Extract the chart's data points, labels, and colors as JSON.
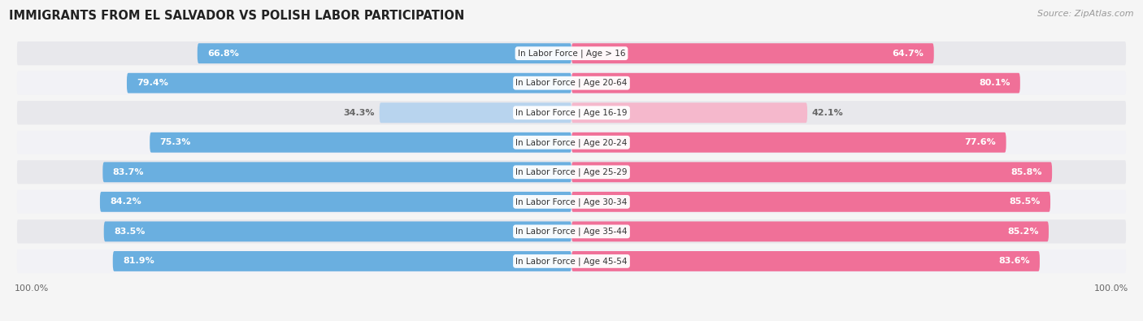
{
  "title": "IMMIGRANTS FROM EL SALVADOR VS POLISH LABOR PARTICIPATION",
  "source": "Source: ZipAtlas.com",
  "categories": [
    "In Labor Force | Age > 16",
    "In Labor Force | Age 20-64",
    "In Labor Force | Age 16-19",
    "In Labor Force | Age 20-24",
    "In Labor Force | Age 25-29",
    "In Labor Force | Age 30-34",
    "In Labor Force | Age 35-44",
    "In Labor Force | Age 45-54"
  ],
  "el_salvador_values": [
    66.8,
    79.4,
    34.3,
    75.3,
    83.7,
    84.2,
    83.5,
    81.9
  ],
  "polish_values": [
    64.7,
    80.1,
    42.1,
    77.6,
    85.8,
    85.5,
    85.2,
    83.6
  ],
  "el_salvador_color": "#6aafe0",
  "el_salvador_light_color": "#b8d4ee",
  "polish_color": "#f07098",
  "polish_light_color": "#f5b8cc",
  "row_bg_odd": "#e8e8ec",
  "row_bg_even": "#f2f2f6",
  "label_color_white": "#ffffff",
  "label_color_dark": "#666666",
  "max_value": 100.0,
  "bar_height": 0.68,
  "title_fontsize": 10.5,
  "source_fontsize": 8,
  "label_fontsize": 8,
  "category_fontsize": 7.5,
  "fig_bg": "#f5f5f5"
}
